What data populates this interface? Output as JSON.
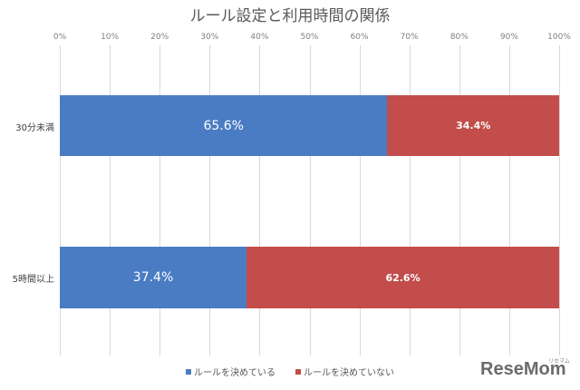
{
  "chart_data": {
    "type": "bar",
    "orientation": "horizontal",
    "stacked": true,
    "percent": true,
    "title": "ルール設定と利用時間の関係",
    "xlabel": "",
    "ylabel": "",
    "xlim": [
      0,
      100
    ],
    "x_ticks": [
      "0%",
      "10%",
      "20%",
      "30%",
      "40%",
      "50%",
      "60%",
      "70%",
      "80%",
      "90%",
      "100%"
    ],
    "grid": true,
    "legend_position": "bottom",
    "categories": [
      "30分未満",
      "5時間以上"
    ],
    "series": [
      {
        "name": "ルールを決めている",
        "color": "#4a7cc4",
        "values": [
          65.6,
          37.4
        ],
        "labels": [
          "65.6%",
          "37.4%"
        ]
      },
      {
        "name": "ルールを決めていない",
        "color": "#c24d4b",
        "values": [
          34.4,
          62.6
        ],
        "labels": [
          "34.4%",
          "62.6%"
        ]
      }
    ]
  },
  "watermark": {
    "main": "ReseMom",
    "sub": "リセマム"
  }
}
